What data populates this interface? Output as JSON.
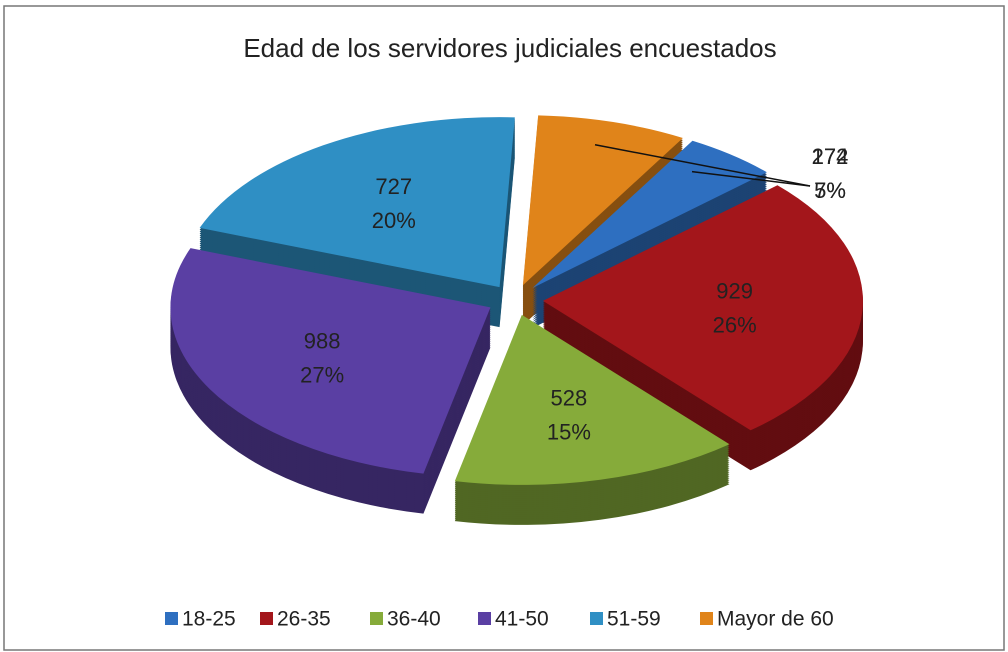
{
  "chart_data": {
    "type": "pie",
    "title": "Edad de los servidores judiciales encuestados",
    "categories": [
      "18-25",
      "26-35",
      "36-40",
      "41-50",
      "51-59",
      "Mayor de 60"
    ],
    "values": [
      172,
      929,
      528,
      988,
      727,
      274
    ],
    "percent_labels": [
      "5%",
      "26%",
      "15%",
      "27%",
      "20%",
      "7%"
    ],
    "colors": [
      "#2e6fc0",
      "#a3161b",
      "#86ab3a",
      "#5a3fa3",
      "#2f8fc4",
      "#e0841a"
    ],
    "legend": "bottom"
  }
}
